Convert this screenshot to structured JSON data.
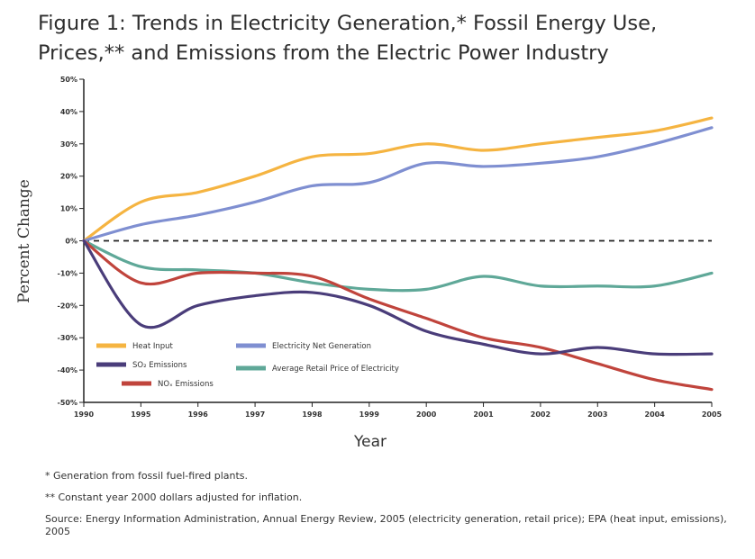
{
  "title_line1": "Figure 1: Trends in Electricity Generation,* Fossil Energy Use,",
  "title_line2": "Prices,** and Emissions from the Electric Power Industry",
  "notes": {
    "note1": "* Generation from fossil fuel-fired plants.",
    "note2": "** Constant year 2000 dollars adjusted for inflation.",
    "source": "Source: Energy Information Administration, Annual Energy Review, 2005 (electricity generation, retail price); EPA (heat input, emissions), 2005"
  },
  "chart_data": {
    "type": "line",
    "xlabel": "Year",
    "ylabel": "Percent Change",
    "ylim": [
      -50,
      50
    ],
    "x_tick_labels": [
      "1990",
      "1995",
      "1996",
      "1997",
      "1998",
      "1999",
      "2000",
      "2001",
      "2002",
      "2003",
      "2004",
      "2005"
    ],
    "y_tick_labels": [
      "50%",
      "40%",
      "30%",
      "20%",
      "10%",
      "0%",
      "-10%",
      "-20%",
      "-30%",
      "-40%",
      "-50%"
    ],
    "y_tick_values": [
      50,
      40,
      30,
      20,
      10,
      0,
      -10,
      -20,
      -30,
      -40,
      -50
    ],
    "zero_line": "dashed",
    "grid": false,
    "series": [
      {
        "name": "Heat Input",
        "color": "#f5b441",
        "values": [
          0,
          12,
          15,
          20,
          26,
          27,
          30,
          28,
          30,
          32,
          34,
          38
        ]
      },
      {
        "name": "Electricity Net Generation",
        "color": "#7f8fd1",
        "values": [
          0,
          5,
          8,
          12,
          17,
          18,
          24,
          23,
          24,
          26,
          30,
          35
        ]
      },
      {
        "name": "SO₂ Emissions",
        "color": "#4a3d7a",
        "values": [
          0,
          -26,
          -20,
          -17,
          -16,
          -20,
          -28,
          -32,
          -35,
          -33,
          -35,
          -35
        ]
      },
      {
        "name": "Average Retail Price of Electricity",
        "color": "#5fa898",
        "values": [
          0,
          -8,
          -9,
          -10,
          -13,
          -15,
          -15,
          -11,
          -14,
          -14,
          -14,
          -10
        ]
      },
      {
        "name": "NOₓ Emissions",
        "color": "#c0443c",
        "values": [
          0,
          -13,
          -10,
          -10,
          -11,
          -18,
          -24,
          -30,
          -33,
          -38,
          -43,
          -46
        ]
      }
    ],
    "legend": "bottom-left, inside plot"
  }
}
